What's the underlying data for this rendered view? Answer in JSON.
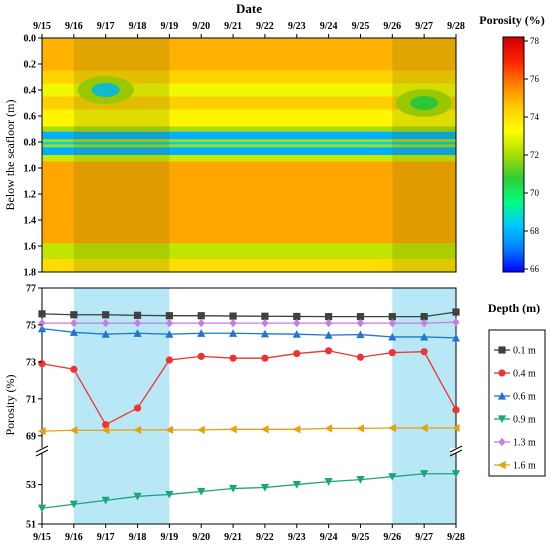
{
  "chart_data": [
    {
      "type": "heatmap",
      "title": "",
      "xlabel": "Date",
      "ylabel": "Below the seafloor (m)",
      "x_ticks": [
        "9/15",
        "9/16",
        "9/17",
        "9/18",
        "9/19",
        "9/20",
        "9/21",
        "9/22",
        "9/23",
        "9/24",
        "9/25",
        "9/26",
        "9/27",
        "9/28"
      ],
      "y_ticks": [
        "0.0",
        "0.2",
        "0.4",
        "0.6",
        "0.8",
        "1.0",
        "1.2",
        "1.4",
        "1.6",
        "1.8"
      ],
      "ylim": [
        0,
        1.8
      ],
      "colorbar": {
        "label": "Porosity (%)",
        "ticks": [
          "78",
          "76",
          "74",
          "72",
          "70",
          "68",
          "66"
        ],
        "range": [
          66,
          78
        ],
        "colors": [
          "#0000ff",
          "#0080ff",
          "#00c8ff",
          "#00ff80",
          "#33cc33",
          "#aadd00",
          "#ffff00",
          "#ffcc00",
          "#ff7f00",
          "#ff2000",
          "#cc0000"
        ]
      },
      "highlights": [
        {
          "from": "9/16",
          "to": "9/19"
        },
        {
          "from": "9/26",
          "to": "9/28"
        }
      ],
      "bands": [
        {
          "depth": [
            0.0,
            0.25
          ],
          "value": 74.8
        },
        {
          "depth": [
            0.25,
            0.35
          ],
          "value": 74.2
        },
        {
          "depth": [
            0.35,
            0.45
          ],
          "value": 73.0
        },
        {
          "depth": [
            0.45,
            0.55
          ],
          "value": 74.3
        },
        {
          "depth": [
            0.55,
            0.68
          ],
          "value": 73.4
        },
        {
          "depth": [
            0.68,
            0.72
          ],
          "value": 72.0
        },
        {
          "depth": [
            0.72,
            0.78
          ],
          "value": 68.0
        },
        {
          "depth": [
            0.78,
            0.8
          ],
          "value": 72.0
        },
        {
          "depth": [
            0.8,
            0.82
          ],
          "value": 68.5
        },
        {
          "depth": [
            0.82,
            0.84
          ],
          "value": 72.0
        },
        {
          "depth": [
            0.84,
            0.9
          ],
          "value": 68.0
        },
        {
          "depth": [
            0.9,
            0.95
          ],
          "value": 72.5
        },
        {
          "depth": [
            0.95,
            1.58
          ],
          "value": 75.0
        },
        {
          "depth": [
            1.58,
            1.7
          ],
          "value": 72.3
        },
        {
          "depth": [
            1.7,
            1.8
          ],
          "value": 74.0
        }
      ],
      "anomalies": [
        {
          "date": "9/17",
          "depth": 0.4,
          "value": 68.5
        },
        {
          "date": "9/27",
          "depth": 0.5,
          "value": 70.5
        }
      ]
    },
    {
      "type": "line",
      "title": "",
      "xlabel": "",
      "ylabel": "Porosity (%)",
      "x": [
        "9/15",
        "9/16",
        "9/17",
        "9/18",
        "9/19",
        "9/20",
        "9/21",
        "9/22",
        "9/23",
        "9/24",
        "9/25",
        "9/26",
        "9/27",
        "9/28"
      ],
      "y_ticks_upper": [
        "69",
        "71",
        "73",
        "75",
        "77"
      ],
      "y_ticks_lower": [
        "51",
        "53"
      ],
      "ylim_upper": [
        68.5,
        77
      ],
      "ylim_lower": [
        51,
        54.5
      ],
      "axis_break": true,
      "legend_title": "Depth (m)",
      "legend_position": "right",
      "highlights": [
        {
          "from": "9/16",
          "to": "9/19"
        },
        {
          "from": "9/26",
          "to": "9/28"
        }
      ],
      "series": [
        {
          "name": "0.1 m",
          "color": "#404040",
          "marker": "square",
          "values": [
            75.6,
            75.55,
            75.55,
            75.52,
            75.5,
            75.5,
            75.48,
            75.47,
            75.46,
            75.45,
            75.45,
            75.45,
            75.45,
            75.7
          ]
        },
        {
          "name": "0.4 m",
          "color": "#ee3333",
          "marker": "circle",
          "values": [
            72.9,
            72.6,
            69.6,
            70.5,
            73.1,
            73.3,
            73.2,
            73.2,
            73.45,
            73.6,
            73.25,
            73.5,
            73.55,
            70.4
          ]
        },
        {
          "name": "0.6 m",
          "color": "#1f77d0",
          "marker": "triangle-up",
          "values": [
            74.8,
            74.6,
            74.5,
            74.55,
            74.5,
            74.55,
            74.55,
            74.52,
            74.5,
            74.45,
            74.48,
            74.35,
            74.35,
            74.3
          ]
        },
        {
          "name": "0.9 m",
          "color": "#1aa67a",
          "marker": "triangle-down",
          "values": [
            51.8,
            52.0,
            52.2,
            52.4,
            52.5,
            52.65,
            52.8,
            52.85,
            53.0,
            53.15,
            53.25,
            53.4,
            53.55,
            53.55
          ]
        },
        {
          "name": "1.3 m",
          "color": "#c47ee0",
          "marker": "diamond",
          "values": [
            75.1,
            75.1,
            75.1,
            75.1,
            75.1,
            75.1,
            75.1,
            75.1,
            75.1,
            75.1,
            75.1,
            75.1,
            75.1,
            75.15
          ]
        },
        {
          "name": "1.6 m",
          "color": "#e6a012",
          "marker": "triangle-left",
          "values": [
            69.25,
            69.3,
            69.3,
            69.32,
            69.32,
            69.32,
            69.35,
            69.35,
            69.35,
            69.4,
            69.4,
            69.42,
            69.42,
            69.42
          ]
        }
      ]
    }
  ]
}
